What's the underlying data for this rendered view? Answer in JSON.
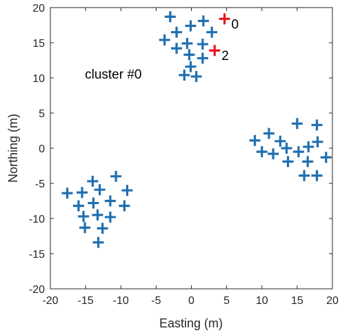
{
  "chart_data": {
    "type": "scatter",
    "title": "",
    "xlabel": "Easting (m)",
    "ylabel": "Northing (m)",
    "xlim": [
      -20,
      20
    ],
    "ylim": [
      -20,
      20
    ],
    "xticks": [
      "-20",
      "-15",
      "-10",
      "-5",
      "0",
      "5",
      "10",
      "15",
      "20"
    ],
    "yticks": [
      "-20",
      "-15",
      "-10",
      "-5",
      "0",
      "5",
      "10",
      "15",
      "20"
    ],
    "grid": false,
    "marker": "plus",
    "colors": {
      "points": "#1f6fb0",
      "highlight": "#e8141b",
      "axis": "#262626"
    },
    "series": [
      {
        "color": "#1f6fb0",
        "points": [
          [
            -3.0,
            18.7
          ],
          [
            -2.1,
            16.5
          ],
          [
            -0.1,
            17.4
          ],
          [
            1.7,
            18.1
          ],
          [
            2.9,
            16.5
          ],
          [
            -3.8,
            15.4
          ],
          [
            -2.1,
            14.2
          ],
          [
            -0.6,
            14.9
          ],
          [
            1.6,
            14.8
          ],
          [
            -0.3,
            13.3
          ],
          [
            1.6,
            12.8
          ],
          [
            -0.1,
            11.6
          ],
          [
            -1.0,
            10.4
          ],
          [
            0.7,
            10.2
          ],
          [
            9.0,
            1.1
          ],
          [
            11.0,
            2.1
          ],
          [
            12.6,
            1.0
          ],
          [
            15.0,
            3.5
          ],
          [
            17.8,
            3.3
          ],
          [
            10.0,
            -0.5
          ],
          [
            11.6,
            -0.8
          ],
          [
            13.5,
            0.0
          ],
          [
            15.2,
            -0.5
          ],
          [
            16.6,
            0.2
          ],
          [
            17.9,
            0.9
          ],
          [
            13.7,
            -1.9
          ],
          [
            16.5,
            -1.9
          ],
          [
            19.1,
            -1.3
          ],
          [
            16.0,
            -3.9
          ],
          [
            17.8,
            -3.9
          ],
          [
            -17.6,
            -6.4
          ],
          [
            -15.5,
            -6.3
          ],
          [
            -14.0,
            -4.7
          ],
          [
            -13.0,
            -5.9
          ],
          [
            -10.7,
            -4.0
          ],
          [
            -9.1,
            -6.0
          ],
          [
            -16.0,
            -8.2
          ],
          [
            -13.9,
            -7.8
          ],
          [
            -11.5,
            -7.5
          ],
          [
            -9.5,
            -8.2
          ],
          [
            -15.3,
            -9.7
          ],
          [
            -13.3,
            -9.5
          ],
          [
            -11.5,
            -9.8
          ],
          [
            -15.1,
            -11.3
          ],
          [
            -12.6,
            -11.4
          ],
          [
            -13.2,
            -13.4
          ]
        ]
      },
      {
        "color": "#e8141b",
        "points": [
          [
            4.7,
            18.4
          ],
          [
            3.3,
            13.9
          ]
        ]
      }
    ],
    "annotations": [
      {
        "text": "0",
        "x": 4.7,
        "y": 18.4
      },
      {
        "text": "2",
        "x": 3.3,
        "y": 13.9
      },
      {
        "text": "cluster #0",
        "x": -15.1,
        "y": 9.9
      }
    ]
  }
}
